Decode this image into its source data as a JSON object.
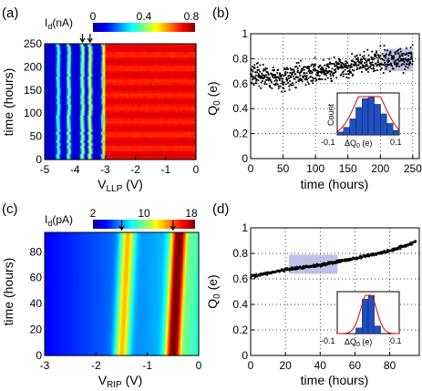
{
  "chart_data": [
    {
      "panel": "(a)",
      "type": "heatmap",
      "xlabel_main": "V",
      "xlabel_sub": "LLP",
      "xlabel_unit": " (V)",
      "ylabel": "time (hours)",
      "xlim": [
        -5,
        0
      ],
      "ylim": [
        0,
        250
      ],
      "x_ticks": [
        "-5",
        "-4",
        "-3",
        "-2",
        "-1",
        "0"
      ],
      "y_ticks": [
        "0",
        "50",
        "100",
        "150",
        "200",
        "250"
      ],
      "colorbar": {
        "label_main": "I",
        "label_sub": "d",
        "label_unit": "(nA)",
        "ticks": [
          "0",
          "0.4",
          "0.8"
        ],
        "range": [
          0,
          0.8
        ]
      },
      "peak_positions_V": [
        -4.55,
        -4.2,
        -3.75,
        -3.5,
        -3.05
      ],
      "arrow_positions_V": [
        -3.75,
        -3.5
      ]
    },
    {
      "panel": "(b)",
      "type": "scatter",
      "xlabel": "time (hours)",
      "ylabel_main": "Q",
      "ylabel_sub": "0",
      "ylabel_unit": " (e)",
      "xlim": [
        0,
        260
      ],
      "ylim": [
        0,
        1
      ],
      "x_ticks": [
        "0",
        "50",
        "100",
        "150",
        "200",
        "250"
      ],
      "y_ticks": [
        "0",
        "0.2",
        "0.4",
        "0.6",
        "0.8",
        "1"
      ],
      "grid": true,
      "trend": [
        [
          0,
          0.68
        ],
        [
          50,
          0.64
        ],
        [
          100,
          0.69
        ],
        [
          150,
          0.74
        ],
        [
          200,
          0.78
        ],
        [
          250,
          0.81
        ]
      ],
      "highlight_x": [
        205,
        250
      ],
      "highlight_y": [
        0.7,
        0.88
      ],
      "inset": {
        "type": "histogram",
        "ylabel": "Count",
        "xlabel_main": "ΔQ",
        "xlabel_sub": "0",
        "xlabel_unit": " (e)",
        "x_ticks": [
          "-0.1",
          "0.1"
        ],
        "xlim": [
          -0.1,
          0.1
        ],
        "counts": [
          0.08,
          0.2,
          0.42,
          0.72,
          0.95,
          0.98,
          0.8,
          0.55,
          0.3,
          0.12
        ]
      }
    },
    {
      "panel": "(c)",
      "type": "heatmap",
      "xlabel_main": "V",
      "xlabel_sub": "RIP",
      "xlabel_unit": " (V)",
      "ylabel": "time (hours)",
      "xlim": [
        -3,
        0
      ],
      "ylim": [
        0,
        95
      ],
      "x_ticks": [
        "-3",
        "-2",
        "-1",
        "0"
      ],
      "y_ticks": [
        "0",
        "20",
        "40",
        "60",
        "80"
      ],
      "colorbar": {
        "label_main": "I",
        "label_sub": "d",
        "label_unit": "(pA)",
        "ticks": [
          "2",
          "10",
          "18"
        ],
        "range": [
          2,
          18
        ]
      },
      "peak_positions_V": [
        -1.5,
        -0.5
      ],
      "arrow_positions_V": [
        -1.5,
        -0.5
      ]
    },
    {
      "panel": "(d)",
      "type": "scatter",
      "xlabel": "time (hours)",
      "ylabel_main": "Q",
      "ylabel_sub": "0",
      "ylabel_unit": " (e)",
      "xlim": [
        0,
        97
      ],
      "ylim": [
        0,
        1
      ],
      "x_ticks": [
        "0",
        "20",
        "40",
        "60",
        "80"
      ],
      "y_ticks": [
        "0",
        "0.2",
        "0.4",
        "0.6",
        "0.8",
        "1"
      ],
      "grid": true,
      "trend": [
        [
          0,
          0.62
        ],
        [
          20,
          0.67
        ],
        [
          40,
          0.71
        ],
        [
          60,
          0.76
        ],
        [
          80,
          0.82
        ],
        [
          95,
          0.89
        ]
      ],
      "highlight_x": [
        22,
        50
      ],
      "highlight_y": [
        0.64,
        0.79
      ],
      "inset": {
        "type": "histogram",
        "ylabel": "",
        "xlabel_main": "ΔQ",
        "xlabel_sub": "0",
        "xlabel_unit": " (e)",
        "x_ticks": [
          "-0.1",
          "0.1"
        ],
        "xlim": [
          -0.1,
          0.1
        ],
        "counts": [
          0,
          0,
          0,
          0.15,
          0.9,
          1.0,
          0.2,
          0,
          0,
          0
        ]
      }
    }
  ]
}
